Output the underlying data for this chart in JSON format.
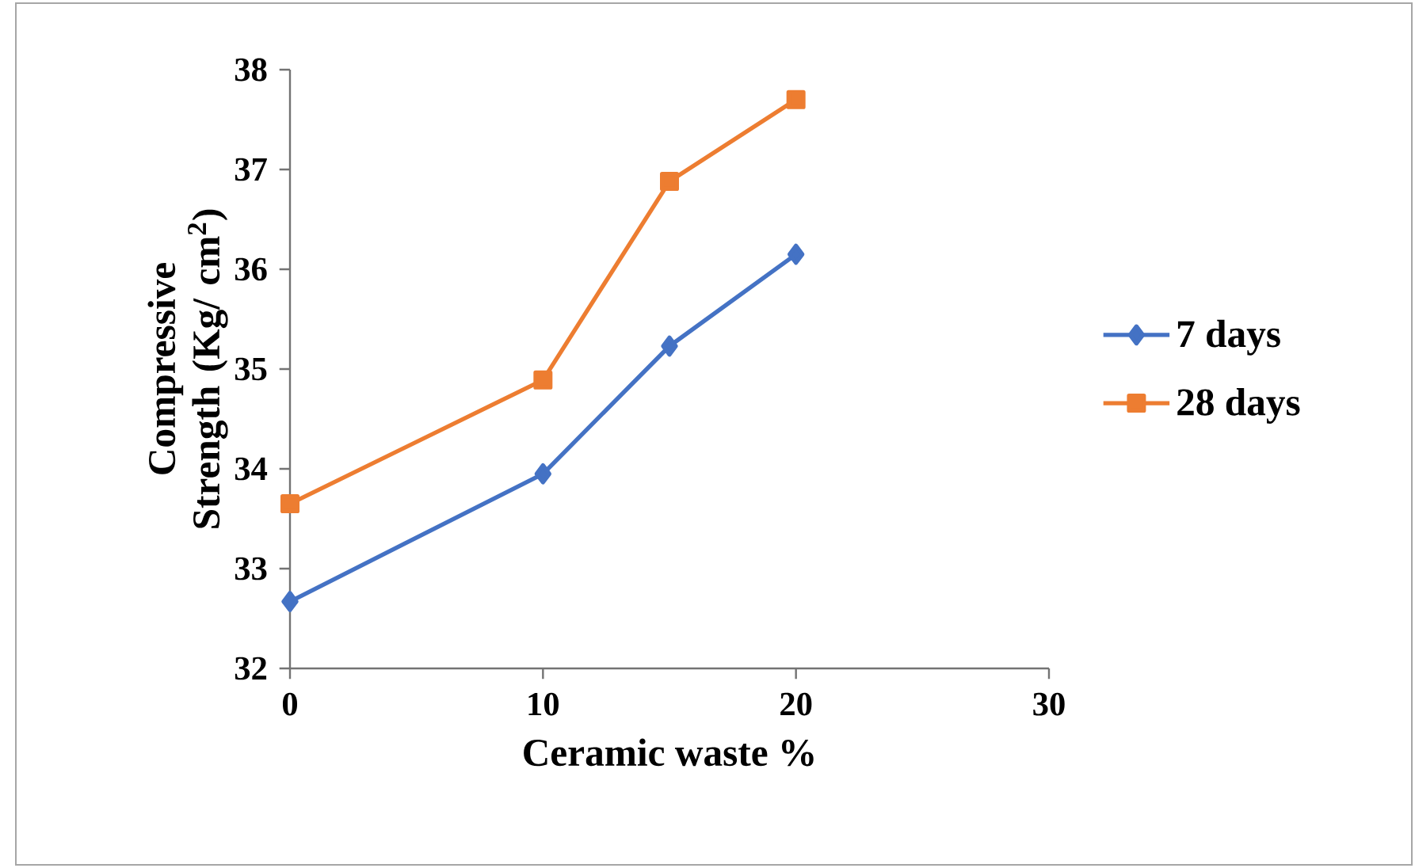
{
  "chart_data": {
    "type": "line",
    "xlabel": "Ceramic waste %",
    "ylabel": "Compressive Strength (Kg/ cm$^{2}$)",
    "x": [
      0,
      10,
      15,
      20
    ],
    "series": [
      {
        "name": "7 days",
        "color": "#4472c4",
        "marker": "diamond",
        "values": [
          32.67,
          33.95,
          35.23,
          36.15
        ]
      },
      {
        "name": "28 days",
        "color": "#ed7d31",
        "marker": "square",
        "values": [
          33.65,
          34.89,
          36.88,
          37.7
        ]
      }
    ],
    "xlim": [
      0,
      30
    ],
    "xticks": [
      0,
      10,
      20,
      30
    ],
    "ylim": [
      32,
      38
    ],
    "yticks": [
      32,
      33,
      34,
      35,
      36,
      37,
      38
    ],
    "grid": false,
    "legend": "right",
    "line_style": "solid"
  }
}
